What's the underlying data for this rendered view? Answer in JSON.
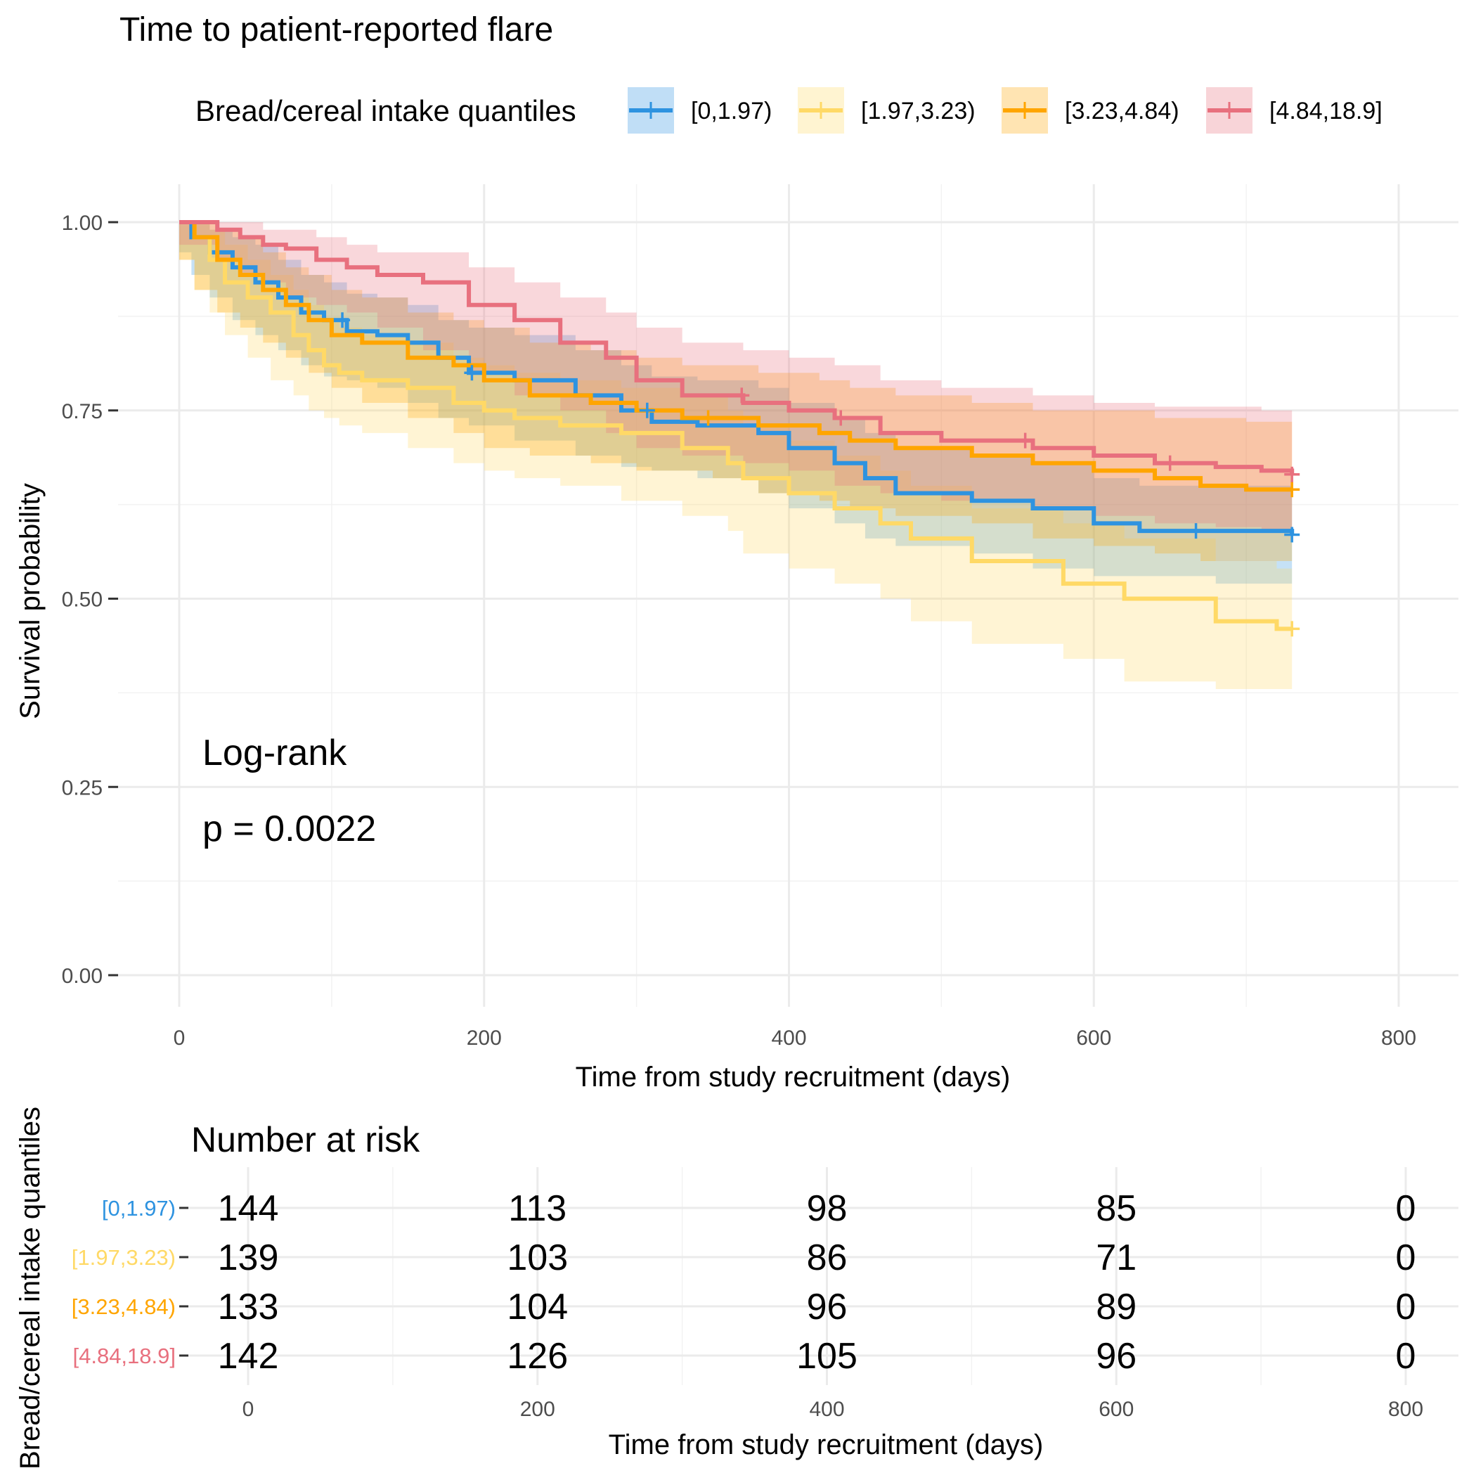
{
  "chart_data": {
    "type": "line",
    "subtype": "kaplan-meier",
    "title": "Time to patient-reported flare",
    "xlabel": "Time from study recruitment (days)",
    "ylabel": "Survival probability",
    "xlim": [
      0,
      800
    ],
    "ylim": [
      0,
      1
    ],
    "x_ticks": [
      "0",
      "200",
      "400",
      "600",
      "800"
    ],
    "y_ticks": [
      "0.00",
      "0.25",
      "0.50",
      "0.75",
      "1.00"
    ],
    "grid": true,
    "legend": {
      "title": "Bread/cereal intake quantiles",
      "position": "top"
    },
    "annotation": {
      "line1": "Log-rank",
      "line2": "p = 0.0022"
    },
    "series": [
      {
        "name": "[0,1.97)",
        "color": "#2E93E0",
        "x": [
          0,
          8,
          20,
          35,
          50,
          65,
          80,
          95,
          110,
          130,
          150,
          170,
          190,
          220,
          260,
          290,
          310,
          340,
          380,
          400,
          430,
          450,
          470,
          520,
          560,
          600,
          630,
          680,
          730
        ],
        "y": [
          1.0,
          0.98,
          0.96,
          0.94,
          0.92,
          0.9,
          0.88,
          0.87,
          0.855,
          0.85,
          0.84,
          0.82,
          0.8,
          0.79,
          0.77,
          0.75,
          0.735,
          0.73,
          0.72,
          0.7,
          0.68,
          0.66,
          0.64,
          0.63,
          0.62,
          0.6,
          0.59,
          0.59,
          0.585
        ],
        "lower": [
          1.0,
          0.96,
          0.93,
          0.9,
          0.87,
          0.85,
          0.83,
          0.81,
          0.795,
          0.79,
          0.78,
          0.76,
          0.74,
          0.73,
          0.71,
          0.69,
          0.675,
          0.67,
          0.66,
          0.64,
          0.62,
          0.6,
          0.58,
          0.57,
          0.56,
          0.54,
          0.53,
          0.53,
          0.52
        ],
        "upper": [
          1.0,
          1.0,
          0.99,
          0.98,
          0.97,
          0.95,
          0.93,
          0.92,
          0.905,
          0.9,
          0.89,
          0.87,
          0.86,
          0.85,
          0.83,
          0.81,
          0.795,
          0.79,
          0.78,
          0.76,
          0.74,
          0.72,
          0.7,
          0.69,
          0.68,
          0.66,
          0.65,
          0.65,
          0.645
        ],
        "censor_x": [
          107,
          192,
          307,
          667,
          730
        ],
        "at_risk": [
          "144",
          "113",
          "98",
          "85",
          "0"
        ]
      },
      {
        "name": "[1.97,3.23)",
        "color": "#FFD966",
        "x": [
          0,
          10,
          20,
          30,
          45,
          60,
          75,
          85,
          95,
          105,
          120,
          150,
          180,
          200,
          220,
          250,
          290,
          330,
          360,
          370,
          400,
          430,
          460,
          480,
          520,
          580,
          620,
          680,
          720,
          730
        ],
        "y": [
          1.0,
          0.98,
          0.95,
          0.92,
          0.9,
          0.88,
          0.85,
          0.83,
          0.81,
          0.8,
          0.79,
          0.78,
          0.76,
          0.75,
          0.74,
          0.73,
          0.72,
          0.7,
          0.68,
          0.66,
          0.64,
          0.62,
          0.6,
          0.58,
          0.55,
          0.52,
          0.5,
          0.47,
          0.46,
          0.46
        ],
        "lower": [
          1.0,
          0.95,
          0.91,
          0.88,
          0.85,
          0.82,
          0.79,
          0.77,
          0.75,
          0.74,
          0.73,
          0.72,
          0.7,
          0.68,
          0.67,
          0.66,
          0.65,
          0.63,
          0.61,
          0.59,
          0.56,
          0.54,
          0.52,
          0.5,
          0.47,
          0.44,
          0.42,
          0.39,
          0.38,
          0.38
        ],
        "upper": [
          1.0,
          1.0,
          0.99,
          0.97,
          0.95,
          0.93,
          0.91,
          0.89,
          0.87,
          0.86,
          0.85,
          0.84,
          0.82,
          0.81,
          0.8,
          0.79,
          0.78,
          0.77,
          0.75,
          0.73,
          0.71,
          0.69,
          0.67,
          0.65,
          0.62,
          0.6,
          0.58,
          0.55,
          0.54,
          0.54
        ],
        "censor_x": [
          730
        ],
        "at_risk": [
          "139",
          "103",
          "86",
          "71",
          "0"
        ]
      },
      {
        "name": "[3.23,4.84)",
        "color": "#FFA500",
        "x": [
          0,
          10,
          25,
          40,
          55,
          70,
          85,
          100,
          120,
          150,
          180,
          200,
          230,
          270,
          300,
          330,
          350,
          380,
          420,
          440,
          470,
          520,
          560,
          600,
          640,
          670,
          700,
          730
        ],
        "y": [
          1.0,
          0.98,
          0.95,
          0.93,
          0.91,
          0.89,
          0.87,
          0.85,
          0.84,
          0.82,
          0.81,
          0.79,
          0.77,
          0.76,
          0.75,
          0.74,
          0.74,
          0.73,
          0.72,
          0.71,
          0.7,
          0.69,
          0.68,
          0.67,
          0.66,
          0.65,
          0.645,
          0.645
        ],
        "lower": [
          1.0,
          0.95,
          0.91,
          0.88,
          0.86,
          0.84,
          0.82,
          0.8,
          0.78,
          0.76,
          0.74,
          0.72,
          0.7,
          0.69,
          0.68,
          0.67,
          0.67,
          0.66,
          0.64,
          0.63,
          0.62,
          0.61,
          0.6,
          0.58,
          0.57,
          0.56,
          0.55,
          0.55
        ],
        "upper": [
          1.0,
          1.0,
          0.99,
          0.98,
          0.96,
          0.94,
          0.93,
          0.91,
          0.9,
          0.88,
          0.87,
          0.86,
          0.84,
          0.83,
          0.82,
          0.81,
          0.81,
          0.8,
          0.79,
          0.78,
          0.77,
          0.76,
          0.75,
          0.75,
          0.74,
          0.74,
          0.735,
          0.735
        ],
        "censor_x": [
          347,
          730
        ],
        "at_risk": [
          "133",
          "104",
          "96",
          "89",
          "0"
        ]
      },
      {
        "name": "[4.84,18.9]",
        "color": "#E8707E",
        "x": [
          0,
          25,
          40,
          55,
          70,
          90,
          110,
          130,
          160,
          190,
          220,
          250,
          280,
          300,
          330,
          370,
          400,
          430,
          460,
          500,
          560,
          600,
          640,
          680,
          710,
          730
        ],
        "y": [
          1.0,
          0.99,
          0.98,
          0.97,
          0.965,
          0.95,
          0.94,
          0.93,
          0.92,
          0.89,
          0.87,
          0.84,
          0.82,
          0.79,
          0.77,
          0.76,
          0.75,
          0.74,
          0.72,
          0.71,
          0.7,
          0.69,
          0.68,
          0.675,
          0.67,
          0.665
        ],
        "lower": [
          1.0,
          0.97,
          0.95,
          0.93,
          0.92,
          0.9,
          0.89,
          0.88,
          0.86,
          0.83,
          0.8,
          0.77,
          0.75,
          0.72,
          0.7,
          0.69,
          0.68,
          0.67,
          0.65,
          0.64,
          0.63,
          0.62,
          0.61,
          0.6,
          0.595,
          0.59
        ],
        "upper": [
          1.0,
          1.0,
          1.0,
          0.99,
          0.99,
          0.98,
          0.97,
          0.96,
          0.96,
          0.94,
          0.92,
          0.9,
          0.88,
          0.86,
          0.84,
          0.83,
          0.82,
          0.81,
          0.79,
          0.78,
          0.77,
          0.76,
          0.755,
          0.755,
          0.75,
          0.75
        ],
        "censor_x": [
          369,
          434,
          555,
          650,
          730
        ],
        "at_risk": [
          "142",
          "126",
          "105",
          "96",
          "0"
        ]
      }
    ],
    "risk_table": {
      "title": "Number at risk",
      "xlabel": "Time from study recruitment (days)",
      "ylabel": "Bread/cereal intake quantiles",
      "x_ticks": [
        "0",
        "200",
        "400",
        "600",
        "800"
      ]
    }
  }
}
